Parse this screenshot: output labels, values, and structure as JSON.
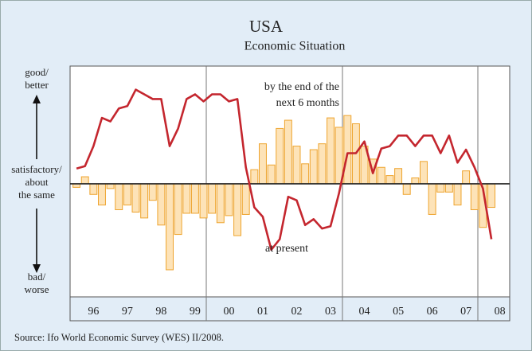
{
  "chart_data": {
    "type": "bar_line",
    "title": "USA",
    "subtitle": "Economic Situation",
    "source": "Source: Ifo World Economic Survey (WES) II/2008.",
    "y_side_labels": [
      [
        "good/",
        "better"
      ],
      [
        "satisfactory/",
        "about",
        "the same"
      ],
      [
        "bad/",
        "worse"
      ]
    ],
    "annotations": [
      [
        "by the end of the",
        "next 6 months"
      ],
      [
        "at present"
      ]
    ],
    "x": [
      1996.0,
      1996.25,
      1996.5,
      1996.75,
      1997.0,
      1997.25,
      1997.5,
      1997.75,
      1998.0,
      1998.25,
      1998.5,
      1998.75,
      1999.0,
      1999.25,
      1999.5,
      1999.75,
      2000.0,
      2000.25,
      2000.5,
      2000.75,
      2001.0,
      2001.25,
      2001.5,
      2001.75,
      2002.0,
      2002.25,
      2002.5,
      2002.75,
      2003.0,
      2003.25,
      2003.5,
      2003.75,
      2004.0,
      2004.25,
      2004.5,
      2004.75,
      2005.0,
      2005.25,
      2005.5,
      2005.75,
      2006.0,
      2006.25,
      2006.5,
      2006.75,
      2007.0,
      2007.25,
      2007.5,
      2007.75,
      2008.0,
      2008.25
    ],
    "xlim": [
      1995.81,
      2008.79
    ],
    "xticks": [
      {
        "value": 1996.5,
        "label": "96"
      },
      {
        "value": 1997.5,
        "label": "97"
      },
      {
        "value": 1998.5,
        "label": "98"
      },
      {
        "value": 1999.5,
        "label": "99"
      },
      {
        "value": 2000.5,
        "label": "00"
      },
      {
        "value": 2001.5,
        "label": "01"
      },
      {
        "value": 2002.5,
        "label": "02"
      },
      {
        "value": 2003.5,
        "label": "03"
      },
      {
        "value": 2004.5,
        "label": "04"
      },
      {
        "value": 2005.5,
        "label": "05"
      },
      {
        "value": 2006.5,
        "label": "06"
      },
      {
        "value": 2007.5,
        "label": "07"
      },
      {
        "value": 2008.5,
        "label": "08"
      }
    ],
    "ylim": [
      -96,
      100
    ],
    "series": [
      {
        "type": "bar",
        "color": "#fde3b8",
        "edge": "#eea42e",
        "values": [
          -3,
          6,
          -9,
          -18,
          -4,
          -22,
          -18,
          -24,
          -29,
          -14,
          -35,
          -73,
          -43,
          -25,
          -25,
          -29,
          -25,
          -33,
          -27,
          -44,
          -26,
          12,
          34,
          16,
          47,
          54,
          32,
          17,
          29,
          34,
          56,
          48,
          58,
          51,
          32,
          21,
          14,
          7,
          13,
          -9,
          5,
          19,
          -26,
          -7,
          -7,
          -18,
          11,
          -22,
          -37,
          -20
        ]
      },
      {
        "type": "line",
        "color": "#c4262e",
        "values": [
          13,
          15,
          32,
          56,
          53,
          64,
          66,
          80,
          76,
          72,
          72,
          32,
          47,
          72,
          76,
          70,
          76,
          76,
          70,
          72,
          14,
          -20,
          -28,
          -56,
          -47,
          -11,
          -14,
          -35,
          -30,
          -38,
          -36,
          -8,
          26,
          26,
          36,
          9,
          30,
          32,
          41,
          41,
          32,
          41,
          41,
          26,
          41,
          18,
          29,
          14,
          -4,
          -47
        ]
      }
    ]
  }
}
